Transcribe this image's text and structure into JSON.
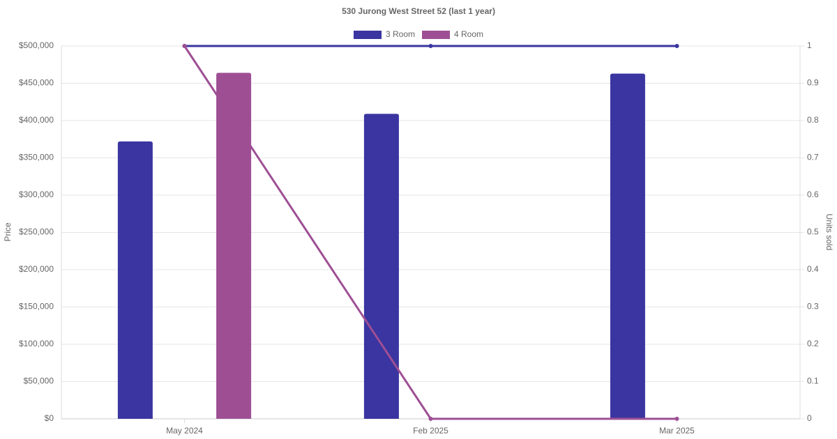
{
  "chart_data": {
    "type": "bar-line",
    "title": "530 Jurong West Street 52 (last 1 year)",
    "y_label": "Price",
    "y2_label": "Units sold",
    "categories": [
      "May 2024",
      "Feb 2025",
      "Mar 2025"
    ],
    "series": [
      {
        "name": "3 Room",
        "type": "bar",
        "color": "#3a35a0",
        "values": [
          372000,
          409000,
          463000
        ]
      },
      {
        "name": "4 Room",
        "type": "bar",
        "color": "#9e4f94",
        "values": [
          464000,
          null,
          null
        ]
      },
      {
        "type": "line",
        "axis": "y2",
        "color": "#3a35a0",
        "values": [
          1,
          1,
          1
        ]
      },
      {
        "type": "line",
        "axis": "y2",
        "color": "#9e4f94",
        "values": [
          1,
          0,
          0
        ]
      }
    ],
    "ylim": [
      0,
      500000
    ],
    "yticks": [
      {
        "value": 0,
        "label": "$0"
      },
      {
        "value": 50000,
        "label": "$50,000"
      },
      {
        "value": 100000,
        "label": "$100,000"
      },
      {
        "value": 150000,
        "label": "$150,000"
      },
      {
        "value": 200000,
        "label": "$200,000"
      },
      {
        "value": 250000,
        "label": "$250,000"
      },
      {
        "value": 300000,
        "label": "$300,000"
      },
      {
        "value": 350000,
        "label": "$350,000"
      },
      {
        "value": 400000,
        "label": "$400,000"
      },
      {
        "value": 450000,
        "label": "$450,000"
      },
      {
        "value": 500000,
        "label": "$500,000"
      }
    ],
    "y2lim": [
      0,
      1
    ],
    "y2ticks": [
      0,
      0.1,
      0.2,
      0.3,
      0.4,
      0.5,
      0.6,
      0.7,
      0.8,
      0.9,
      1
    ],
    "grid": true,
    "legend": "top"
  }
}
